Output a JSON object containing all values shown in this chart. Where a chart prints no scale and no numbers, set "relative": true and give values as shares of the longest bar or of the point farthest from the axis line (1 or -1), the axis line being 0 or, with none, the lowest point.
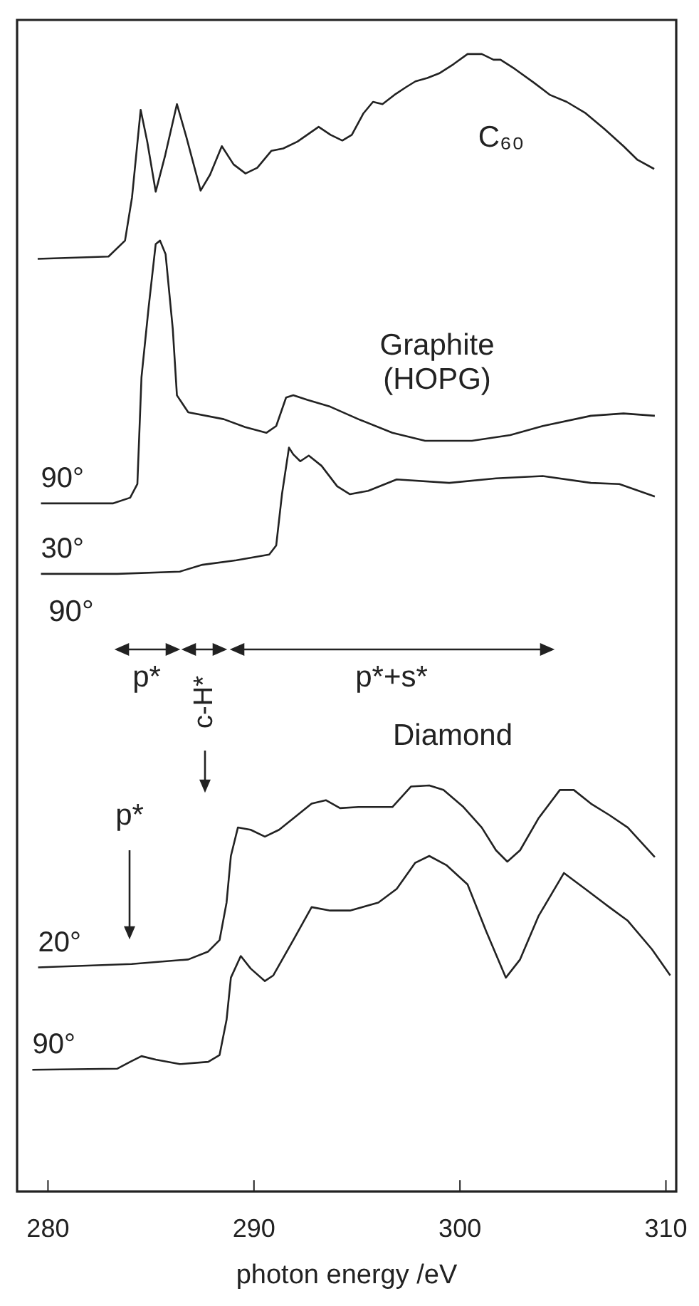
{
  "chart_data": {
    "type": "line",
    "relative": true,
    "xlabel": "photon energy /eV",
    "xlim": [
      278.5,
      310.5
    ],
    "xticks": [
      280,
      290,
      300,
      310
    ],
    "marker": "none",
    "line_style": "solid",
    "series": [
      {
        "color": "#222222",
        "x": [
          279.5,
          282.94,
          283.74,
          284.08,
          284.5,
          284.82,
          285.23,
          285.69,
          286.26,
          286.72,
          287.41,
          287.87,
          288.44,
          289.01,
          289.59,
          290.16,
          290.85,
          291.42,
          292.11,
          293.14,
          293.72,
          294.29,
          294.75,
          295.32,
          295.78,
          296.24,
          296.81,
          297.39,
          297.84,
          298.42,
          298.99,
          299.68,
          300.37,
          301.06,
          301.63,
          301.97,
          302.66,
          303.58,
          304.38,
          305.18,
          306.1,
          307.02,
          307.94,
          308.62,
          309.43
        ],
        "values": [
          0.82,
          0.822,
          0.836,
          0.874,
          0.951,
          0.923,
          0.879,
          0.911,
          0.956,
          0.927,
          0.88,
          0.894,
          0.919,
          0.903,
          0.895,
          0.9,
          0.915,
          0.917,
          0.923,
          0.936,
          0.929,
          0.924,
          0.929,
          0.948,
          0.958,
          0.956,
          0.964,
          0.971,
          0.976,
          0.979,
          0.983,
          0.991,
          1.0,
          1.0,
          0.995,
          0.995,
          0.987,
          0.975,
          0.964,
          0.958,
          0.948,
          0.934,
          0.919,
          0.907,
          0.899
        ]
      },
      {
        "name": "90°",
        "color": "#222222",
        "x": [
          279.66,
          283.17,
          283.99,
          284.34,
          284.54,
          284.89,
          285.23,
          285.44,
          285.71,
          286.06,
          286.26,
          286.81,
          288.53,
          289.57,
          290.6,
          291.08,
          291.56,
          291.91,
          292.59,
          293.7,
          295.07,
          296.72,
          298.31,
          300.58,
          302.44,
          304.02,
          306.36,
          307.94,
          309.46
        ],
        "values": [
          0.605,
          0.605,
          0.61,
          0.622,
          0.716,
          0.778,
          0.833,
          0.836,
          0.824,
          0.758,
          0.7,
          0.685,
          0.679,
          0.672,
          0.667,
          0.673,
          0.698,
          0.7,
          0.696,
          0.69,
          0.679,
          0.667,
          0.66,
          0.66,
          0.665,
          0.673,
          0.682,
          0.684,
          0.682
        ]
      },
      {
        "name": "30°",
        "color": "#222222",
        "x": [
          279.66,
          283.37,
          286.4,
          287.5,
          289.15,
          290.74,
          291.08,
          291.36,
          291.7,
          291.91,
          292.25,
          292.66,
          293.28,
          294.04,
          294.66,
          295.55,
          296.93,
          299.48,
          301.75,
          304.02,
          306.36,
          307.74,
          309.46
        ],
        "values": [
          0.543,
          0.543,
          0.545,
          0.551,
          0.555,
          0.56,
          0.568,
          0.613,
          0.654,
          0.648,
          0.642,
          0.647,
          0.638,
          0.62,
          0.613,
          0.616,
          0.626,
          0.623,
          0.627,
          0.629,
          0.623,
          0.622,
          0.611
        ]
      },
      {
        "name": "20°",
        "color": "#222222",
        "x": [
          279.52,
          284.06,
          286.81,
          287.78,
          288.33,
          288.67,
          288.88,
          289.22,
          289.84,
          290.53,
          291.22,
          291.91,
          292.8,
          293.49,
          294.18,
          295.07,
          296.72,
          297.62,
          298.51,
          299.2,
          300.17,
          301.06,
          301.75,
          302.3,
          302.92,
          303.81,
          304.85,
          305.53,
          306.36,
          307.25,
          308.15,
          309.46
        ],
        "values": [
          0.197,
          0.2,
          0.204,
          0.211,
          0.221,
          0.254,
          0.295,
          0.32,
          0.318,
          0.312,
          0.318,
          0.328,
          0.341,
          0.344,
          0.337,
          0.338,
          0.338,
          0.356,
          0.357,
          0.353,
          0.338,
          0.32,
          0.3,
          0.29,
          0.3,
          0.328,
          0.353,
          0.353,
          0.341,
          0.331,
          0.32,
          0.294
        ]
      },
      {
        "name": "90°",
        "color": "#222222",
        "x": [
          279.24,
          283.37,
          283.99,
          284.54,
          285.23,
          286.4,
          287.78,
          288.33,
          288.67,
          288.88,
          289.36,
          289.84,
          290.53,
          290.94,
          291.91,
          292.8,
          293.7,
          294.66,
          296.04,
          296.93,
          297.83,
          298.51,
          299.34,
          300.37,
          301.27,
          302.23,
          302.92,
          303.81,
          305.05,
          306.08,
          307.25,
          308.15,
          309.32,
          310.21
        ],
        "values": [
          0.107,
          0.108,
          0.114,
          0.119,
          0.116,
          0.112,
          0.114,
          0.12,
          0.151,
          0.188,
          0.207,
          0.196,
          0.185,
          0.19,
          0.221,
          0.25,
          0.247,
          0.247,
          0.254,
          0.266,
          0.289,
          0.295,
          0.287,
          0.27,
          0.229,
          0.188,
          0.204,
          0.242,
          0.28,
          0.266,
          0.25,
          0.238,
          0.213,
          0.19
        ]
      }
    ],
    "annotations": [
      "C₆₀",
      "Graphite\n(HOPG)",
      "Diamond",
      "90°",
      "p*",
      "p*",
      "c-H*",
      "p*+s*"
    ]
  }
}
